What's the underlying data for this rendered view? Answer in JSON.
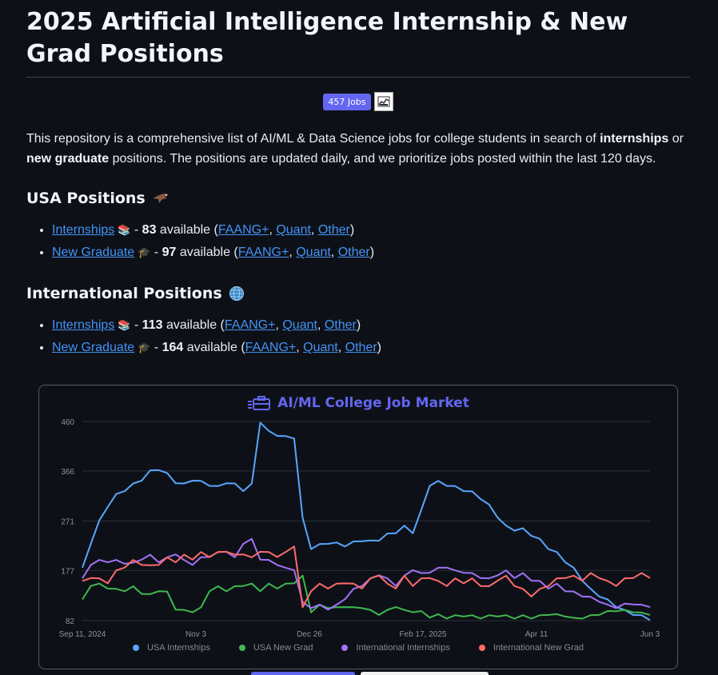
{
  "title": "2025 Artificial Intelligence Internship & New Grad Positions",
  "badge_jobs": "457 Jobs",
  "intro": {
    "pre": "This repository is a comprehensive list of AI/ML & Data Science jobs for college students in search of ",
    "b1": "internships",
    "mid": " or ",
    "b2": "new graduate",
    "post": " positions. The positions are updated daily, and we prioritize jobs posted within the last 120 days."
  },
  "usa": {
    "heading": "USA Positions",
    "items": [
      {
        "link": "Internships",
        "emoji": "📚",
        "count": "83",
        "available": "available",
        "faang": "FAANG+",
        "quant": "Quant",
        "other": "Other"
      },
      {
        "link": "New Graduate",
        "emoji": "🎓",
        "count": "97",
        "available": "available",
        "faang": "FAANG+",
        "quant": "Quant",
        "other": "Other"
      }
    ]
  },
  "intl": {
    "heading": "International Positions",
    "items": [
      {
        "link": "Internships",
        "emoji": "📚",
        "count": "113",
        "available": "available",
        "faang": "FAANG+",
        "quant": "Quant",
        "other": "Other"
      },
      {
        "link": "New Graduate",
        "emoji": "🎓",
        "count": "164",
        "available": "available",
        "faang": "FAANG+",
        "quant": "Quant",
        "other": "Other"
      }
    ]
  },
  "chart_data": {
    "type": "line",
    "title": "AI/ML College Job Market",
    "ylim": [
      82,
      460
    ],
    "yticks": [
      "460",
      "366",
      "271",
      "177",
      "82"
    ],
    "xticks": [
      "Sep 11, 2024",
      "Nov 3",
      "Dec 26",
      "Feb 17, 2025",
      "Apr 11",
      "Jun 3"
    ],
    "grid": true,
    "legend_position": "bottom",
    "series": [
      {
        "name": "USA Internships",
        "color": "#58a6ff",
        "values": [
          180,
          230,
          270,
          300,
          320,
          330,
          340,
          350,
          365,
          370,
          360,
          345,
          340,
          350,
          345,
          340,
          335,
          345,
          340,
          330,
          340,
          460,
          440,
          435,
          430,
          430,
          275,
          220,
          225,
          230,
          228,
          225,
          230,
          235,
          232,
          236,
          245,
          250,
          260,
          250,
          290,
          340,
          345,
          340,
          335,
          330,
          325,
          315,
          300,
          280,
          260,
          255,
          255,
          245,
          235,
          220,
          210,
          195,
          180,
          160,
          140,
          130,
          120,
          110,
          100,
          95,
          90,
          85
        ]
      },
      {
        "name": "USA New Grad",
        "color": "#3fb950",
        "values": [
          120,
          150,
          150,
          145,
          140,
          140,
          145,
          135,
          130,
          140,
          135,
          105,
          100,
          100,
          105,
          140,
          145,
          140,
          145,
          150,
          150,
          140,
          150,
          145,
          150,
          155,
          165,
          100,
          110,
          108,
          105,
          110,
          105,
          108,
          100,
          95,
          100,
          110,
          100,
          100,
          98,
          90,
          92,
          88,
          90,
          92,
          90,
          88,
          90,
          92,
          90,
          88,
          90,
          88,
          90,
          95,
          92,
          92,
          85,
          88,
          90,
          95,
          98,
          102,
          100,
          100,
          95,
          95
        ]
      },
      {
        "name": "International Internships",
        "color": "#a371f7",
        "values": [
          160,
          190,
          195,
          195,
          195,
          192,
          190,
          200,
          205,
          195,
          200,
          210,
          195,
          190,
          200,
          205,
          210,
          215,
          200,
          230,
          235,
          200,
          195,
          190,
          180,
          180,
          115,
          108,
          110,
          105,
          110,
          125,
          140,
          150,
          160,
          170,
          160,
          150,
          165,
          180,
          170,
          175,
          180,
          185,
          175,
          175,
          170,
          165,
          160,
          170,
          175,
          165,
          170,
          160,
          155,
          145,
          150,
          140,
          135,
          130,
          125,
          120,
          110,
          108,
          112,
          115,
          110,
          110
        ]
      },
      {
        "name": "International New Grad",
        "color": "#ff6b6b",
        "values": [
          155,
          165,
          160,
          155,
          175,
          185,
          195,
          190,
          185,
          190,
          200,
          195,
          205,
          200,
          210,
          205,
          210,
          215,
          205,
          210,
          200,
          215,
          210,
          205,
          210,
          225,
          105,
          140,
          150,
          145,
          150,
          155,
          150,
          145,
          160,
          170,
          150,
          145,
          165,
          150,
          160,
          165,
          155,
          150,
          160,
          155,
          160,
          150,
          145,
          160,
          165,
          150,
          140,
          130,
          140,
          150,
          160,
          165,
          165,
          160,
          170,
          165,
          155,
          150,
          160,
          165,
          170,
          165
        ]
      }
    ]
  }
}
